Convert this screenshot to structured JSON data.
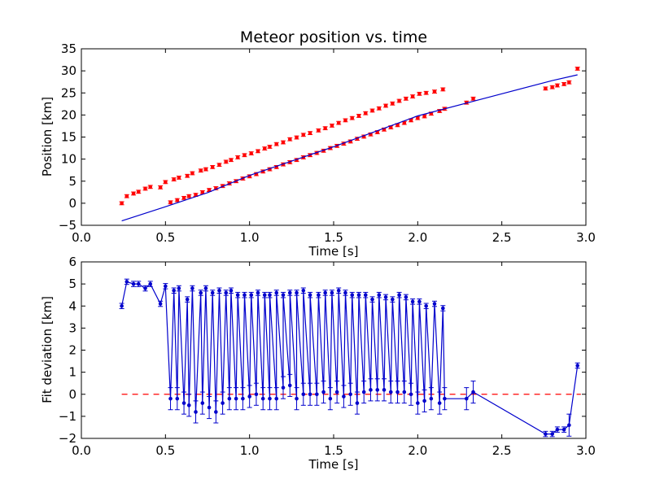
{
  "chart_data": [
    {
      "type": "scatter",
      "title": "Meteor position vs. time",
      "xlabel": "Time [s]",
      "ylabel": "Position [km]",
      "xlim": [
        0.0,
        3.0
      ],
      "ylim": [
        -5,
        35
      ],
      "xticks": [
        "0.0",
        "0.5",
        "1.0",
        "1.5",
        "2.0",
        "2.5",
        "3.0"
      ],
      "yticks": [
        "−5",
        "0",
        "5",
        "10",
        "15",
        "20",
        "25",
        "30",
        "35"
      ],
      "xtick_values": [
        0.0,
        0.5,
        1.0,
        1.5,
        2.0,
        2.5,
        3.0
      ],
      "ytick_values": [
        -5,
        0,
        5,
        10,
        15,
        20,
        25,
        30,
        35
      ],
      "series": [
        {
          "color": "#ff0000",
          "marker": "point-with-errorbar",
          "points": [
            [
              0.24,
              0.0
            ],
            [
              0.27,
              1.6
            ],
            [
              0.31,
              2.2
            ],
            [
              0.34,
              2.6
            ],
            [
              0.38,
              3.3
            ],
            [
              0.41,
              3.7
            ],
            [
              0.47,
              3.6
            ],
            [
              0.5,
              4.8
            ],
            [
              0.55,
              5.4
            ],
            [
              0.58,
              5.8
            ],
            [
              0.63,
              6.2
            ],
            [
              0.66,
              6.8
            ],
            [
              0.71,
              7.4
            ],
            [
              0.74,
              7.7
            ],
            [
              0.78,
              8.2
            ],
            [
              0.82,
              8.7
            ],
            [
              0.86,
              9.4
            ],
            [
              0.89,
              9.8
            ],
            [
              0.93,
              10.4
            ],
            [
              0.97,
              10.9
            ],
            [
              1.01,
              11.3
            ],
            [
              1.05,
              11.8
            ],
            [
              1.09,
              12.4
            ],
            [
              1.12,
              12.8
            ],
            [
              1.16,
              13.4
            ],
            [
              1.2,
              13.8
            ],
            [
              1.24,
              14.5
            ],
            [
              1.28,
              14.9
            ],
            [
              1.32,
              15.5
            ],
            [
              1.36,
              15.9
            ],
            [
              1.41,
              16.5
            ],
            [
              1.45,
              17.0
            ],
            [
              1.49,
              17.6
            ],
            [
              1.53,
              18.2
            ],
            [
              1.57,
              18.8
            ],
            [
              1.61,
              19.3
            ],
            [
              1.65,
              19.8
            ],
            [
              1.69,
              20.4
            ],
            [
              1.73,
              21.0
            ],
            [
              1.77,
              21.5
            ],
            [
              1.81,
              22.1
            ],
            [
              1.85,
              22.6
            ],
            [
              1.89,
              23.2
            ],
            [
              1.93,
              23.7
            ],
            [
              1.97,
              24.2
            ],
            [
              2.01,
              24.8
            ],
            [
              2.05,
              25.0
            ],
            [
              2.1,
              25.3
            ],
            [
              2.15,
              25.8
            ],
            [
              0.53,
              0.2
            ],
            [
              0.57,
              0.7
            ],
            [
              0.61,
              1.2
            ],
            [
              0.64,
              1.6
            ],
            [
              0.68,
              1.9
            ],
            [
              0.72,
              2.5
            ],
            [
              0.76,
              3.0
            ],
            [
              0.8,
              3.4
            ],
            [
              0.84,
              3.9
            ],
            [
              0.88,
              4.5
            ],
            [
              0.92,
              5.0
            ],
            [
              0.96,
              5.6
            ],
            [
              1.0,
              6.1
            ],
            [
              1.04,
              6.6
            ],
            [
              1.08,
              7.2
            ],
            [
              1.12,
              7.7
            ],
            [
              1.16,
              8.2
            ],
            [
              1.2,
              8.8
            ],
            [
              1.24,
              9.3
            ],
            [
              1.28,
              9.8
            ],
            [
              1.32,
              10.4
            ],
            [
              1.36,
              10.9
            ],
            [
              1.4,
              11.4
            ],
            [
              1.44,
              11.9
            ],
            [
              1.48,
              12.5
            ],
            [
              1.52,
              13.0
            ],
            [
              1.56,
              13.5
            ],
            [
              1.6,
              14.0
            ],
            [
              1.64,
              14.6
            ],
            [
              1.68,
              15.1
            ],
            [
              1.72,
              15.6
            ],
            [
              1.76,
              16.1
            ],
            [
              1.8,
              16.7
            ],
            [
              1.84,
              17.2
            ],
            [
              1.88,
              17.7
            ],
            [
              1.92,
              18.2
            ],
            [
              1.96,
              18.8
            ],
            [
              2.0,
              19.3
            ],
            [
              2.04,
              19.7
            ],
            [
              2.08,
              20.3
            ],
            [
              2.13,
              20.9
            ],
            [
              2.16,
              21.4
            ],
            [
              2.29,
              22.8
            ],
            [
              2.33,
              23.7
            ],
            [
              2.76,
              26.0
            ],
            [
              2.8,
              26.3
            ],
            [
              2.83,
              26.7
            ],
            [
              2.87,
              27.0
            ],
            [
              2.9,
              27.4
            ],
            [
              2.95,
              30.5
            ]
          ]
        },
        {
          "color": "#0000cc",
          "marker": "line",
          "points": [
            [
              0.24,
              -4.0
            ],
            [
              0.5,
              -0.8
            ],
            [
              0.75,
              2.4
            ],
            [
              1.0,
              6.3
            ],
            [
              1.5,
              12.8
            ],
            [
              2.0,
              19.8
            ],
            [
              2.5,
              24.8
            ],
            [
              2.8,
              27.8
            ],
            [
              2.95,
              29.1
            ]
          ]
        }
      ]
    },
    {
      "type": "line",
      "title": "",
      "xlabel": "Time [s]",
      "ylabel": "Fit deviation [km]",
      "xlim": [
        0.0,
        3.0
      ],
      "ylim": [
        -2,
        6
      ],
      "xticks": [
        "0.0",
        "0.5",
        "1.0",
        "1.5",
        "2.0",
        "2.5",
        "3.0"
      ],
      "yticks": [
        "−2",
        "−1",
        "0",
        "1",
        "2",
        "3",
        "4",
        "5",
        "6"
      ],
      "xtick_values": [
        0.0,
        0.5,
        1.0,
        1.5,
        2.0,
        2.5,
        3.0
      ],
      "ytick_values": [
        -2,
        -1,
        0,
        1,
        2,
        3,
        4,
        5,
        6
      ],
      "reference_line": {
        "y": 0,
        "color": "#ff0000",
        "style": "dashed"
      },
      "series": [
        {
          "color": "#0000cc",
          "marker": "dot-with-errorbar",
          "points": [
            [
              0.24,
              4.0
            ],
            [
              0.27,
              5.1
            ],
            [
              0.31,
              5.0
            ],
            [
              0.34,
              5.0
            ],
            [
              0.38,
              4.8
            ],
            [
              0.41,
              5.0
            ],
            [
              0.47,
              4.1
            ],
            [
              0.5,
              4.9
            ],
            [
              0.53,
              -0.2
            ],
            [
              0.55,
              4.7
            ],
            [
              0.57,
              -0.2
            ],
            [
              0.58,
              4.8
            ],
            [
              0.61,
              -0.4
            ],
            [
              0.63,
              4.3
            ],
            [
              0.64,
              -0.5
            ],
            [
              0.66,
              4.8
            ],
            [
              0.68,
              -0.8
            ],
            [
              0.71,
              4.6
            ],
            [
              0.72,
              -0.4
            ],
            [
              0.74,
              4.8
            ],
            [
              0.76,
              -0.6
            ],
            [
              0.78,
              4.6
            ],
            [
              0.8,
              -0.8
            ],
            [
              0.82,
              4.7
            ],
            [
              0.84,
              -0.4
            ],
            [
              0.86,
              4.6
            ],
            [
              0.88,
              -0.2
            ],
            [
              0.89,
              4.7
            ],
            [
              0.92,
              -0.2
            ],
            [
              0.93,
              4.5
            ],
            [
              0.96,
              -0.2
            ],
            [
              0.97,
              4.5
            ],
            [
              1.0,
              -0.1
            ],
            [
              1.01,
              4.5
            ],
            [
              1.04,
              0.0
            ],
            [
              1.05,
              4.6
            ],
            [
              1.08,
              -0.2
            ],
            [
              1.09,
              4.5
            ],
            [
              1.12,
              -0.2
            ],
            [
              1.12,
              4.5
            ],
            [
              1.16,
              -0.2
            ],
            [
              1.16,
              4.6
            ],
            [
              1.2,
              0.3
            ],
            [
              1.2,
              4.5
            ],
            [
              1.24,
              0.4
            ],
            [
              1.24,
              4.6
            ],
            [
              1.28,
              -0.2
            ],
            [
              1.28,
              4.6
            ],
            [
              1.32,
              0.0
            ],
            [
              1.32,
              4.7
            ],
            [
              1.36,
              0.0
            ],
            [
              1.36,
              4.5
            ],
            [
              1.4,
              0.0
            ],
            [
              1.41,
              4.5
            ],
            [
              1.44,
              0.1
            ],
            [
              1.45,
              4.6
            ],
            [
              1.48,
              -0.2
            ],
            [
              1.49,
              4.6
            ],
            [
              1.52,
              0.1
            ],
            [
              1.53,
              4.7
            ],
            [
              1.56,
              -0.1
            ],
            [
              1.57,
              4.6
            ],
            [
              1.6,
              0.0
            ],
            [
              1.61,
              4.5
            ],
            [
              1.64,
              -0.4
            ],
            [
              1.65,
              4.5
            ],
            [
              1.68,
              0.1
            ],
            [
              1.69,
              4.5
            ],
            [
              1.72,
              0.2
            ],
            [
              1.73,
              4.3
            ],
            [
              1.76,
              0.2
            ],
            [
              1.77,
              4.5
            ],
            [
              1.8,
              0.2
            ],
            [
              1.81,
              4.4
            ],
            [
              1.84,
              0.1
            ],
            [
              1.85,
              4.3
            ],
            [
              1.88,
              0.1
            ],
            [
              1.89,
              4.5
            ],
            [
              1.92,
              0.1
            ],
            [
              1.93,
              4.4
            ],
            [
              1.96,
              0.0
            ],
            [
              1.97,
              4.2
            ],
            [
              2.0,
              -0.4
            ],
            [
              2.01,
              4.2
            ],
            [
              2.04,
              -0.3
            ],
            [
              2.05,
              4.0
            ],
            [
              2.08,
              -0.2
            ],
            [
              2.1,
              4.1
            ],
            [
              2.13,
              -0.4
            ],
            [
              2.15,
              3.9
            ],
            [
              2.16,
              -0.2
            ],
            [
              2.29,
              -0.2
            ],
            [
              2.33,
              0.1
            ],
            [
              2.76,
              -1.8
            ],
            [
              2.8,
              -1.8
            ],
            [
              2.83,
              -1.6
            ],
            [
              2.87,
              -1.6
            ],
            [
              2.9,
              -1.4
            ],
            [
              2.95,
              1.3
            ]
          ]
        }
      ]
    }
  ]
}
